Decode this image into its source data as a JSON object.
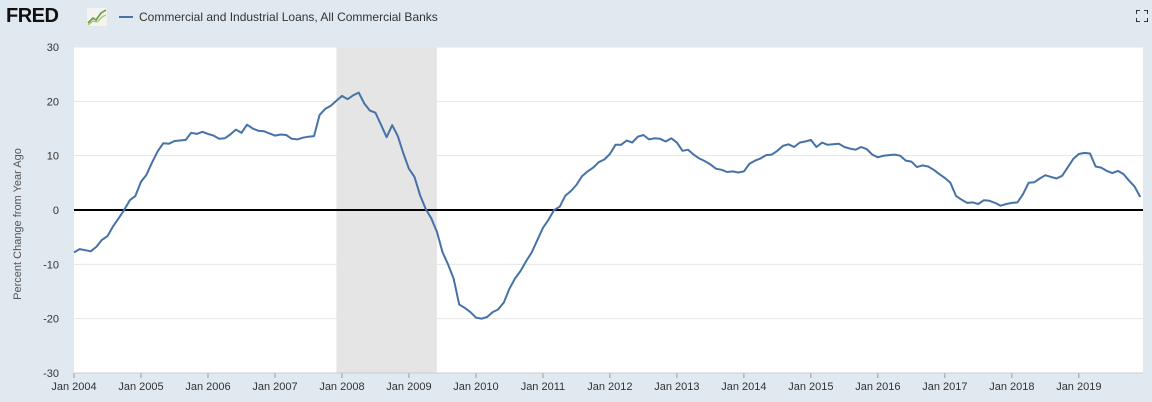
{
  "header": {
    "logo_text": "FRED",
    "logo_icon": "fred-chart-icon",
    "legend_label": "Commercial and Industrial Loans, All Commercial Banks",
    "fullscreen_icon": "fullscreen-icon"
  },
  "colors": {
    "background": "#e1e9f0",
    "plot_background": "#ffffff",
    "series": "#4572a7",
    "recession_band": "#e5e5e5",
    "zero_line": "#000000",
    "grid": "#e6e6e6"
  },
  "chart_data": {
    "type": "line",
    "title": "",
    "xlabel": "",
    "ylabel": "Percent Change from Year Ago",
    "ylim": [
      -30,
      30
    ],
    "xlim": [
      2004.0,
      2019.958
    ],
    "y_ticks": [
      "30",
      "20",
      "10",
      "0",
      "-10",
      "-20",
      "-30"
    ],
    "x_ticks": [
      "Jan 2004",
      "Jan 2005",
      "Jan 2006",
      "Jan 2007",
      "Jan 2008",
      "Jan 2009",
      "Jan 2010",
      "Jan 2011",
      "Jan 2012",
      "Jan 2013",
      "Jan 2014",
      "Jan 2015",
      "Jan 2016",
      "Jan 2017",
      "Jan 2018",
      "Jan 2019"
    ],
    "grid": true,
    "legend_position": "top-left",
    "recession_shading": [
      [
        2007.917,
        2009.417
      ]
    ],
    "series": [
      {
        "name": "Commercial and Industrial Loans, All Commercial Banks",
        "x": [
          2004.0,
          2004.083,
          2004.167,
          2004.25,
          2004.333,
          2004.417,
          2004.5,
          2004.583,
          2004.667,
          2004.75,
          2004.833,
          2004.917,
          2005.0,
          2005.083,
          2005.167,
          2005.25,
          2005.333,
          2005.417,
          2005.5,
          2005.583,
          2005.667,
          2005.75,
          2005.833,
          2005.917,
          2006.0,
          2006.083,
          2006.167,
          2006.25,
          2006.333,
          2006.417,
          2006.5,
          2006.583,
          2006.667,
          2006.75,
          2006.833,
          2006.917,
          2007.0,
          2007.083,
          2007.167,
          2007.25,
          2007.333,
          2007.417,
          2007.5,
          2007.583,
          2007.667,
          2007.75,
          2007.833,
          2007.917,
          2008.0,
          2008.083,
          2008.167,
          2008.25,
          2008.333,
          2008.417,
          2008.5,
          2008.583,
          2008.667,
          2008.75,
          2008.833,
          2008.917,
          2009.0,
          2009.083,
          2009.167,
          2009.25,
          2009.333,
          2009.417,
          2009.5,
          2009.583,
          2009.667,
          2009.75,
          2009.833,
          2009.917,
          2010.0,
          2010.083,
          2010.167,
          2010.25,
          2010.333,
          2010.417,
          2010.5,
          2010.583,
          2010.667,
          2010.75,
          2010.833,
          2010.917,
          2011.0,
          2011.083,
          2011.167,
          2011.25,
          2011.333,
          2011.417,
          2011.5,
          2011.583,
          2011.667,
          2011.75,
          2011.833,
          2011.917,
          2012.0,
          2012.083,
          2012.167,
          2012.25,
          2012.333,
          2012.417,
          2012.5,
          2012.583,
          2012.667,
          2012.75,
          2012.833,
          2012.917,
          2013.0,
          2013.083,
          2013.167,
          2013.25,
          2013.333,
          2013.417,
          2013.5,
          2013.583,
          2013.667,
          2013.75,
          2013.833,
          2013.917,
          2014.0,
          2014.083,
          2014.167,
          2014.25,
          2014.333,
          2014.417,
          2014.5,
          2014.583,
          2014.667,
          2014.75,
          2014.833,
          2014.917,
          2015.0,
          2015.083,
          2015.167,
          2015.25,
          2015.333,
          2015.417,
          2015.5,
          2015.583,
          2015.667,
          2015.75,
          2015.833,
          2015.917,
          2016.0,
          2016.083,
          2016.167,
          2016.25,
          2016.333,
          2016.417,
          2016.5,
          2016.583,
          2016.667,
          2016.75,
          2016.833,
          2016.917,
          2017.0,
          2017.083,
          2017.167,
          2017.25,
          2017.333,
          2017.417,
          2017.5,
          2017.583,
          2017.667,
          2017.75,
          2017.833,
          2017.917,
          2018.0,
          2018.083,
          2018.167,
          2018.25,
          2018.333,
          2018.417,
          2018.5,
          2018.583,
          2018.667,
          2018.75,
          2018.833,
          2018.917,
          2019.0,
          2019.083,
          2019.167,
          2019.25,
          2019.333,
          2019.417,
          2019.5,
          2019.583,
          2019.667,
          2019.75,
          2019.833,
          2019.917
        ],
        "y": [
          -7.8,
          -7.2,
          -7.4,
          -7.6,
          -6.8,
          -5.5,
          -4.8,
          -3.0,
          -1.5,
          0.0,
          1.8,
          2.6,
          5.2,
          6.5,
          8.8,
          10.8,
          12.3,
          12.2,
          12.7,
          12.8,
          12.9,
          14.2,
          14.0,
          14.4,
          14.0,
          13.7,
          13.1,
          13.2,
          13.9,
          14.8,
          14.2,
          15.7,
          15.0,
          14.6,
          14.5,
          14.1,
          13.7,
          13.9,
          13.8,
          13.1,
          13.0,
          13.3,
          13.5,
          13.6,
          17.5,
          18.6,
          19.2,
          20.1,
          21.0,
          20.4,
          21.1,
          21.6,
          19.6,
          18.3,
          17.9,
          15.7,
          13.4,
          15.6,
          13.6,
          10.4,
          7.6,
          6.1,
          2.7,
          0.2,
          -1.5,
          -4.0,
          -7.7,
          -10.0,
          -12.6,
          -17.4,
          -18.0,
          -18.8,
          -19.8,
          -20.0,
          -19.7,
          -18.8,
          -18.3,
          -17.0,
          -14.5,
          -12.6,
          -11.2,
          -9.4,
          -7.8,
          -5.5,
          -3.3,
          -1.8,
          0.0,
          0.6,
          2.6,
          3.5,
          4.6,
          6.2,
          7.1,
          7.8,
          8.8,
          9.3,
          10.3,
          12.0,
          12.0,
          12.8,
          12.4,
          13.5,
          13.8,
          13.0,
          13.2,
          13.1,
          12.6,
          13.2,
          12.4,
          10.9,
          11.1,
          10.2,
          9.5,
          9.0,
          8.4,
          7.6,
          7.4,
          7.0,
          7.1,
          6.9,
          7.1,
          8.5,
          9.1,
          9.5,
          10.1,
          10.2,
          10.9,
          11.8,
          12.1,
          11.6,
          12.4,
          12.6,
          12.9,
          11.6,
          12.4,
          12.0,
          12.1,
          12.2,
          11.6,
          11.3,
          11.1,
          11.6,
          11.2,
          10.2,
          9.7,
          10.0,
          10.1,
          10.2,
          10.0,
          9.1,
          8.9,
          7.9,
          8.2,
          8.0,
          7.4,
          6.6,
          5.9,
          5.0,
          2.6,
          1.9,
          1.3,
          1.4,
          1.1,
          1.8,
          1.7,
          1.3,
          0.8,
          1.1,
          1.3,
          1.4,
          2.9,
          5.0,
          5.1,
          5.8,
          6.4,
          6.1,
          5.8,
          6.3,
          7.8,
          9.4,
          10.3,
          10.5,
          10.4,
          8.0,
          7.8,
          7.2,
          6.8,
          7.2,
          6.6,
          5.4,
          4.3,
          2.4
        ]
      }
    ]
  }
}
